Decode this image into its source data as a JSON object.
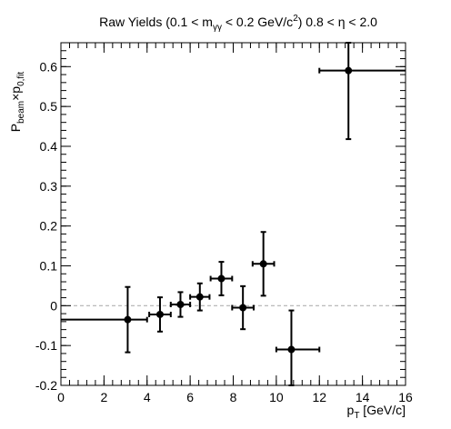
{
  "chart_data": {
    "type": "scatter",
    "title": "Raw Yields (0.1 < m_{γγ} < 0.2 GeV/c^{2}) 0.8 < η < 2.0",
    "title_parts": {
      "t1": "Raw Yields (0.1 < m",
      "t1_sub": "γγ",
      "t2": " < 0.2 GeV/c",
      "t2_sup": "2",
      "t3": ") 0.8 < η < 2.0"
    },
    "xlabel": "p_T [GeV/c]",
    "xlabel_parts": {
      "main": "p",
      "sub": "T",
      "rest": " [GeV/c]"
    },
    "ylabel": "P_beam×p_0,fit",
    "ylabel_parts": {
      "p1": "P",
      "p1_sub": "beam",
      "p2": "×p",
      "p2_sub": "0,fit"
    },
    "xlim": [
      0,
      16
    ],
    "ylim": [
      -0.2,
      0.66
    ],
    "xticks": [
      0,
      2,
      4,
      6,
      8,
      10,
      12,
      14,
      16
    ],
    "yticks": [
      -0.2,
      -0.1,
      0,
      0.1,
      0.2,
      0.3,
      0.4,
      0.5,
      0.6
    ],
    "xtick_labels": [
      "0",
      "2",
      "4",
      "6",
      "8",
      "10",
      "12",
      "14",
      "16"
    ],
    "ytick_labels": [
      "-0.2",
      "-0.1",
      "0",
      "0.1",
      "0.2",
      "0.3",
      "0.4",
      "0.5",
      "0.6"
    ],
    "reference_line": {
      "y": 0,
      "style": "dashed",
      "color": "#b0b0b0"
    },
    "series": [
      {
        "color": "#000000",
        "points": [
          {
            "x": 3.1,
            "y": -0.035,
            "xerr_low": 3.1,
            "xerr_high": 0.9,
            "yerr": 0.082
          },
          {
            "x": 4.6,
            "y": -0.022,
            "xerr_low": 0.5,
            "xerr_high": 0.5,
            "yerr": 0.043
          },
          {
            "x": 5.55,
            "y": 0.003,
            "xerr_low": 0.45,
            "xerr_high": 0.45,
            "yerr": 0.031
          },
          {
            "x": 6.45,
            "y": 0.022,
            "xerr_low": 0.45,
            "xerr_high": 0.45,
            "yerr": 0.034
          },
          {
            "x": 7.45,
            "y": 0.068,
            "xerr_low": 0.5,
            "xerr_high": 0.5,
            "yerr": 0.042
          },
          {
            "x": 8.45,
            "y": -0.005,
            "xerr_low": 0.5,
            "xerr_high": 0.5,
            "yerr": 0.054
          },
          {
            "x": 9.4,
            "y": 0.105,
            "xerr_low": 0.5,
            "xerr_high": 0.5,
            "yerr": 0.08
          },
          {
            "x": 10.7,
            "y": -0.11,
            "xerr_low": 0.7,
            "xerr_high": 1.3,
            "yerr": 0.098
          },
          {
            "x": 13.35,
            "y": 0.59,
            "xerr_low": 1.35,
            "xerr_high": 2.65,
            "yerr": 0.172
          }
        ]
      }
    ]
  }
}
